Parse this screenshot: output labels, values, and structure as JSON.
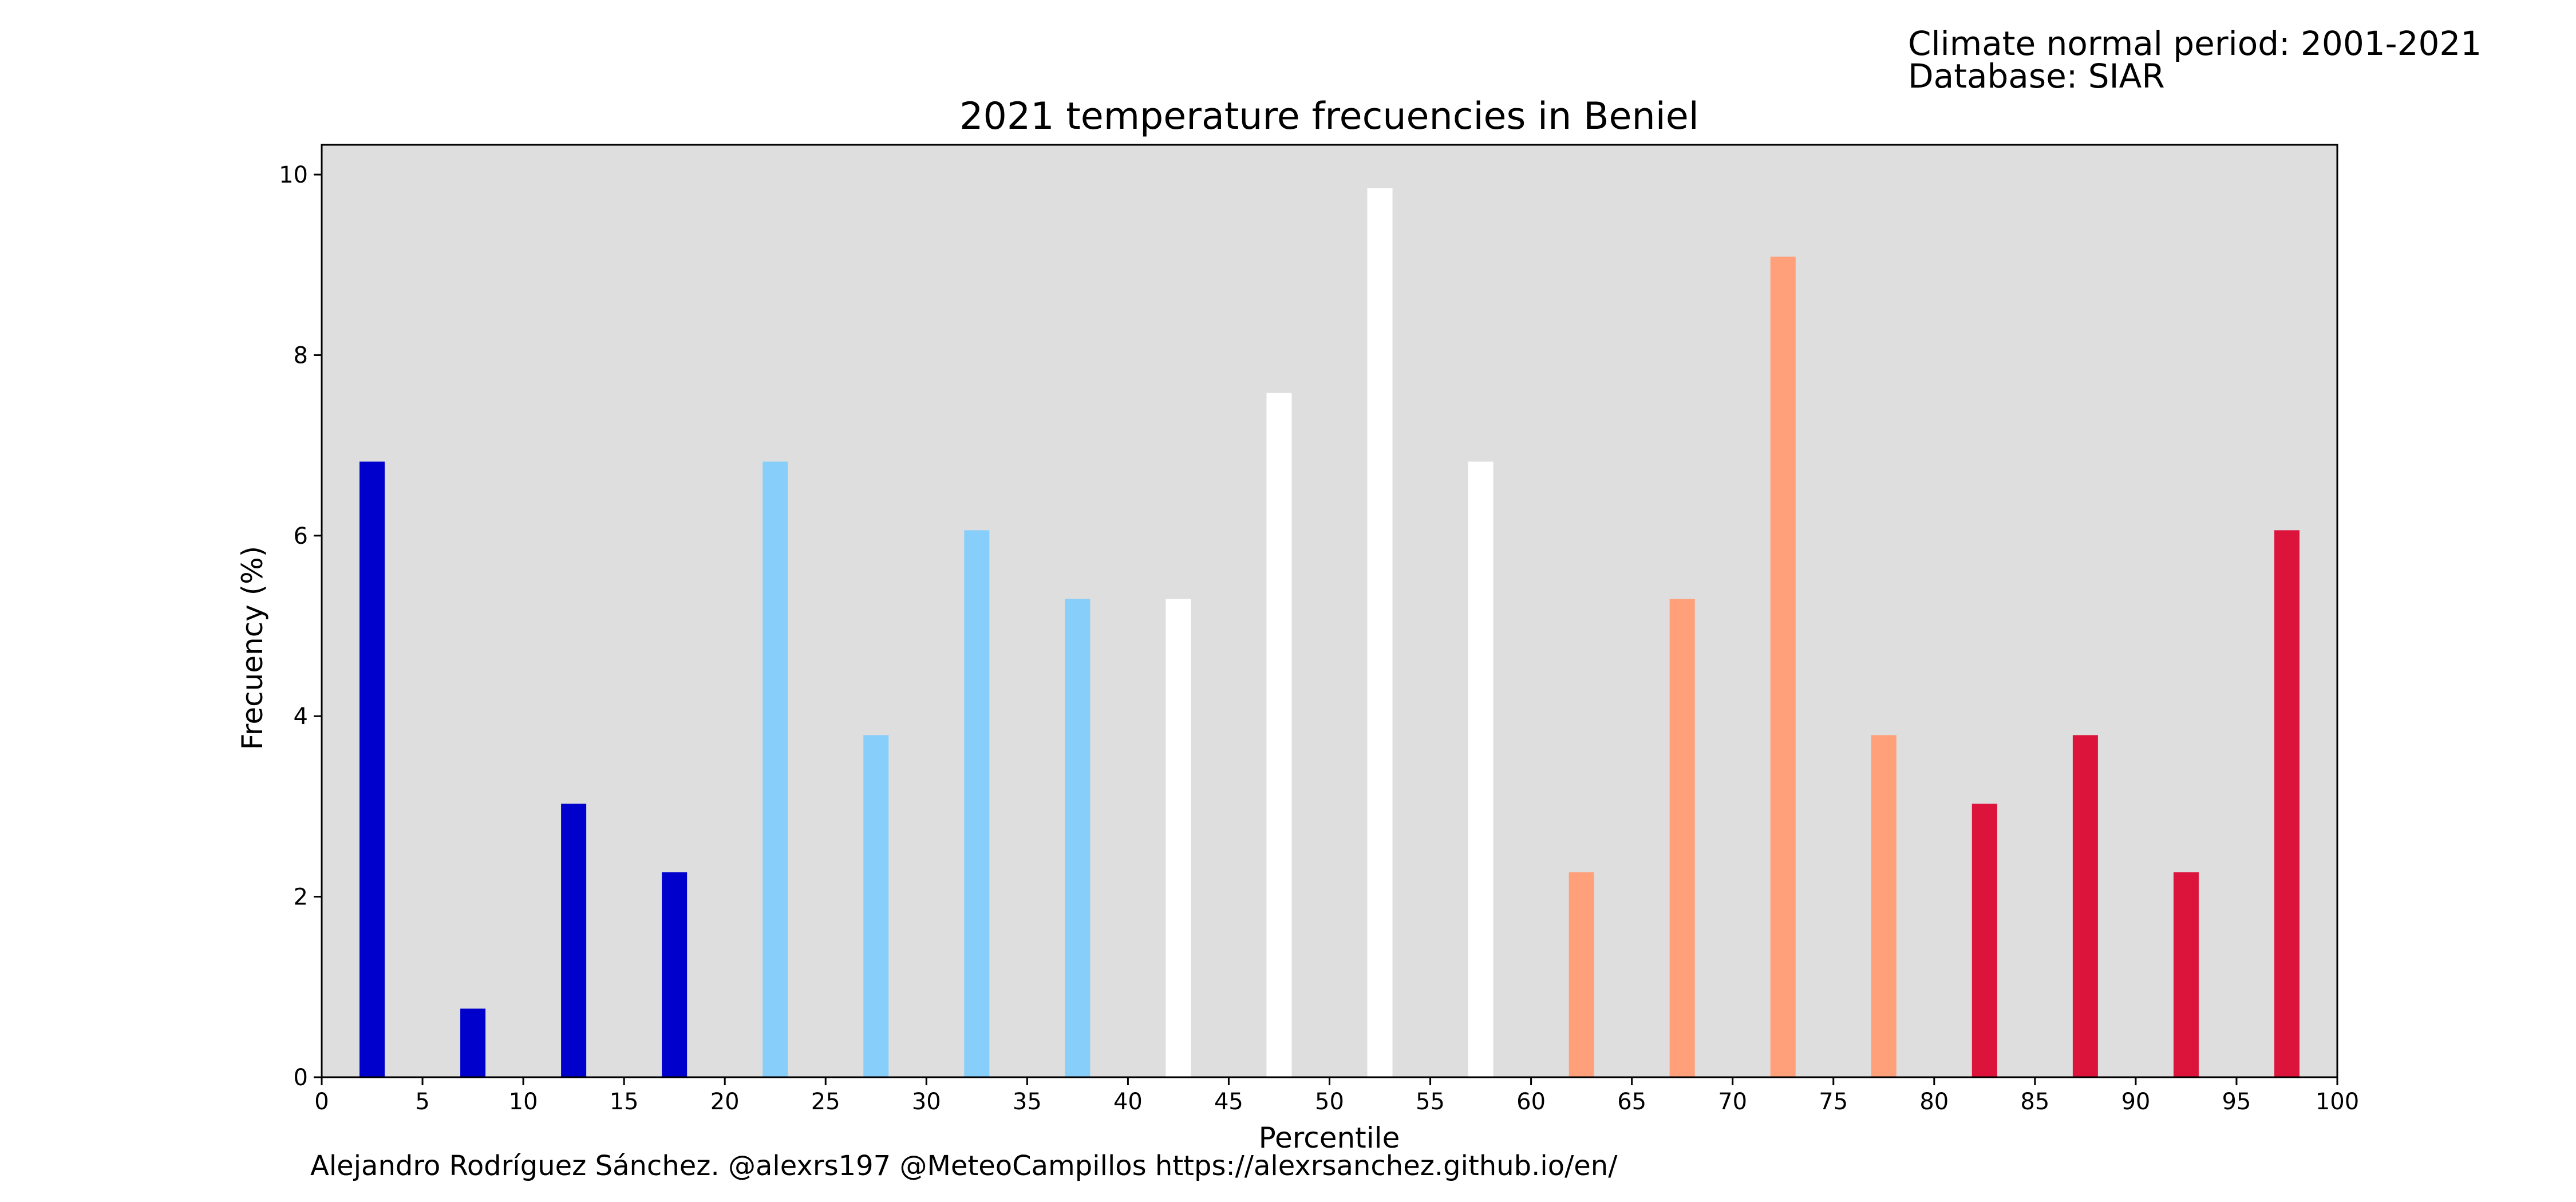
{
  "header": {
    "climate_period": "Climate normal period: 2001-2021",
    "database": "Database: SIAR"
  },
  "footer": {
    "credit": "Alejandro Rodríguez Sánchez. @alexrs197 @MeteoCampillos   https://alexrsanchez.github.io/en/"
  },
  "chart_data": {
    "type": "bar",
    "title": "2021 temperature frecuencies in Beniel",
    "xlabel": "Percentile",
    "ylabel": "Frecuency (%)",
    "xlim": [
      0,
      100
    ],
    "ylim": [
      0,
      10.33
    ],
    "x_ticks": [
      0,
      5,
      10,
      15,
      20,
      25,
      30,
      35,
      40,
      45,
      50,
      55,
      60,
      65,
      70,
      75,
      80,
      85,
      90,
      95,
      100
    ],
    "y_ticks": [
      0,
      2,
      4,
      6,
      8,
      10
    ],
    "grid": false,
    "background_color": "#dedede",
    "bar_width": 1.25,
    "bars": [
      {
        "x": 2.5,
        "value": 6.82,
        "color": "#0000cd"
      },
      {
        "x": 7.5,
        "value": 0.76,
        "color": "#0000cd"
      },
      {
        "x": 12.5,
        "value": 3.03,
        "color": "#0000cd"
      },
      {
        "x": 17.5,
        "value": 2.27,
        "color": "#0000cd"
      },
      {
        "x": 22.5,
        "value": 6.82,
        "color": "#87cefa"
      },
      {
        "x": 27.5,
        "value": 3.79,
        "color": "#87cefa"
      },
      {
        "x": 32.5,
        "value": 6.06,
        "color": "#87cefa"
      },
      {
        "x": 37.5,
        "value": 5.3,
        "color": "#87cefa"
      },
      {
        "x": 42.5,
        "value": 5.3,
        "color": "#ffffff"
      },
      {
        "x": 47.5,
        "value": 7.58,
        "color": "#ffffff"
      },
      {
        "x": 52.5,
        "value": 9.85,
        "color": "#ffffff"
      },
      {
        "x": 57.5,
        "value": 6.82,
        "color": "#ffffff"
      },
      {
        "x": 62.5,
        "value": 2.27,
        "color": "#ffa07a"
      },
      {
        "x": 67.5,
        "value": 5.3,
        "color": "#ffa07a"
      },
      {
        "x": 72.5,
        "value": 9.09,
        "color": "#ffa07a"
      },
      {
        "x": 77.5,
        "value": 3.79,
        "color": "#ffa07a"
      },
      {
        "x": 82.5,
        "value": 3.03,
        "color": "#dc143c"
      },
      {
        "x": 87.5,
        "value": 3.79,
        "color": "#dc143c"
      },
      {
        "x": 92.5,
        "value": 2.27,
        "color": "#dc143c"
      },
      {
        "x": 97.5,
        "value": 6.06,
        "color": "#dc143c"
      }
    ]
  }
}
